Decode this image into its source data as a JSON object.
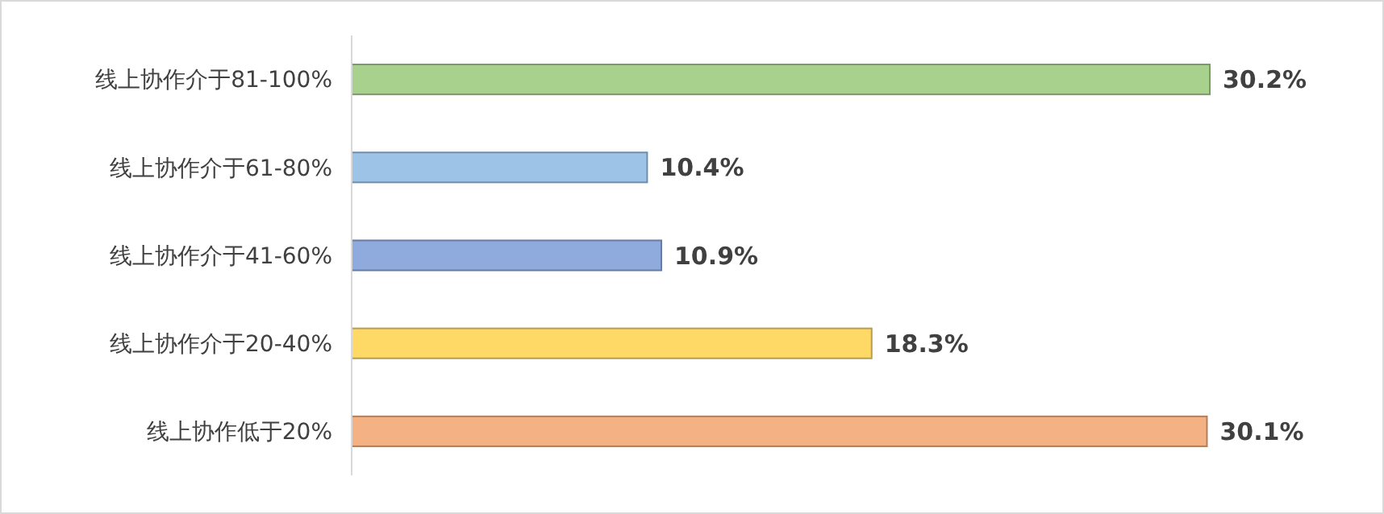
{
  "chart_data": {
    "type": "bar",
    "orientation": "horizontal",
    "categories": [
      "线上协作介于81-100%",
      "线上协作介于61-80%",
      "线上协作介于41-60%",
      "线上协作介于20-40%",
      "线上协作低于20%"
    ],
    "values": [
      30.2,
      10.4,
      10.9,
      18.3,
      30.1
    ],
    "value_labels": [
      "30.2%",
      "10.4%",
      "10.9%",
      "18.3%",
      "30.1%"
    ],
    "colors": [
      "#a9d18e",
      "#9dc3e6",
      "#8faadc",
      "#ffd966",
      "#f4b183"
    ]
  }
}
